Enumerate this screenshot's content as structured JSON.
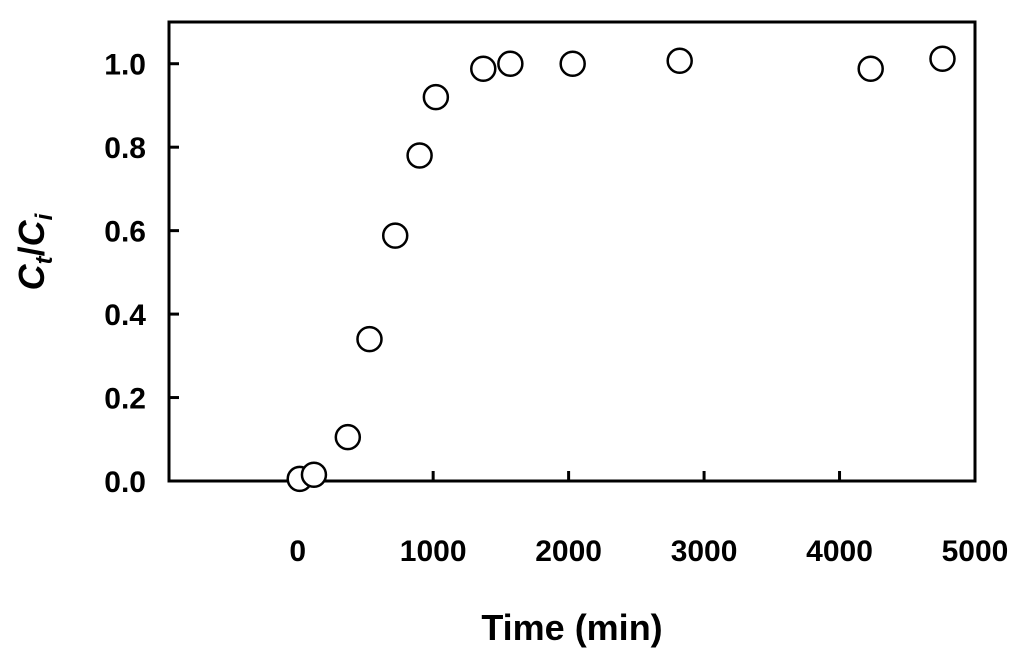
{
  "chart_data": {
    "type": "scatter",
    "xlabel": "Time (min)",
    "ylabel": {
      "c1": "C",
      "sub1": "t",
      "sep": "/",
      "c2": "C",
      "sub2": "i"
    },
    "xlim": [
      -950,
      5000
    ],
    "ylim": [
      0.0,
      1.1
    ],
    "x_ticks": [
      0,
      1000,
      2000,
      3000,
      4000,
      5000
    ],
    "y_ticks": [
      0.0,
      0.2,
      0.4,
      0.6,
      0.8,
      1.0
    ],
    "x_tick_labels": [
      "0",
      "1000",
      "2000",
      "3000",
      "4000",
      "5000"
    ],
    "y_tick_labels": [
      "0.0",
      "0.2",
      "0.4",
      "0.6",
      "0.8",
      "1.0"
    ],
    "grid": false,
    "legend": "none",
    "marker": "open-circle",
    "marker_color": "#000000",
    "series": [
      {
        "points": [
          {
            "x": 15,
            "y": 0.005
          },
          {
            "x": 120,
            "y": 0.015
          },
          {
            "x": 370,
            "y": 0.105
          },
          {
            "x": 530,
            "y": 0.34
          },
          {
            "x": 720,
            "y": 0.588
          },
          {
            "x": 900,
            "y": 0.78
          },
          {
            "x": 1020,
            "y": 0.92
          },
          {
            "x": 1370,
            "y": 0.988
          },
          {
            "x": 1570,
            "y": 1.0
          },
          {
            "x": 2030,
            "y": 1.0
          },
          {
            "x": 2820,
            "y": 1.007
          },
          {
            "x": 4230,
            "y": 0.988
          },
          {
            "x": 4760,
            "y": 1.012
          }
        ]
      }
    ]
  }
}
